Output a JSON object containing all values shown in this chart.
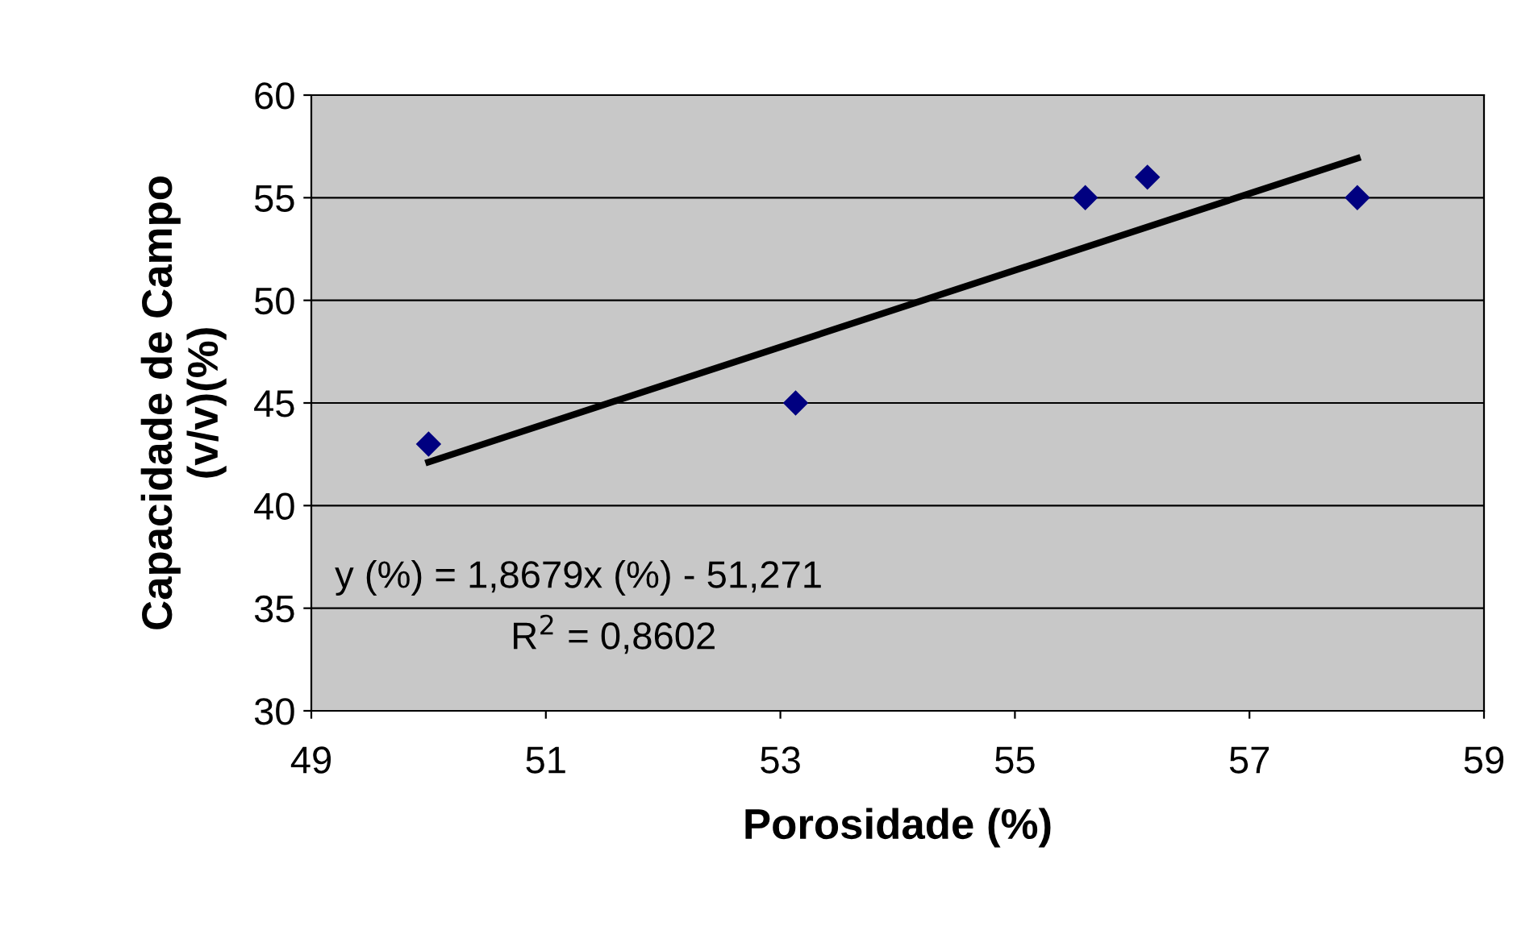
{
  "chart_data": {
    "type": "scatter",
    "xlabel": "Porosidade (%)",
    "ylabel": "Capacidade de Campo\n(v/v)(%)",
    "series": [
      {
        "color": "#000080",
        "x": [
          50.0,
          53.13,
          55.6,
          56.13,
          57.92
        ],
        "values": [
          43,
          45,
          55,
          56,
          55
        ],
        "marker": "diamond"
      },
      {
        "type": "line",
        "color": "#000000",
        "x": [
          50.0,
          57.92
        ],
        "values": [
          42.12,
          56.92
        ],
        "marker": "none",
        "line_style": "solid"
      }
    ],
    "annotations": [
      {
        "text": "y (%) = 1,8679x (%) - 51,271"
      },
      {
        "text": "R$^{2}$ = 0,8602"
      }
    ],
    "xlim": [
      49,
      59
    ],
    "xticks": [
      49,
      51,
      53,
      55,
      57,
      59
    ],
    "ylim": [
      30,
      60
    ],
    "yticks": [
      30,
      35,
      40,
      45,
      50,
      55,
      60
    ],
    "grid": "y",
    "legend": false
  }
}
